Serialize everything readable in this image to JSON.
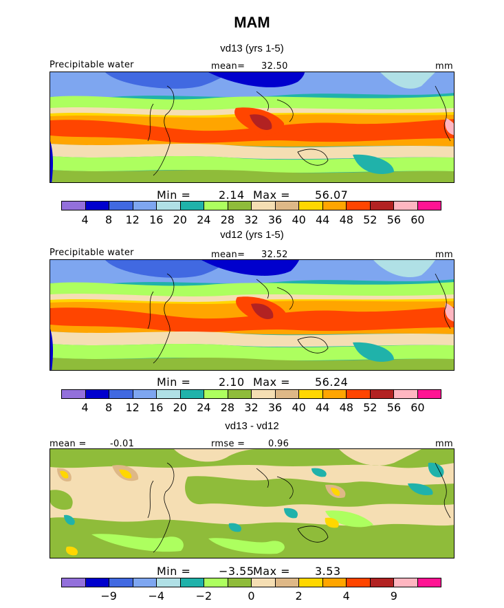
{
  "figure": {
    "title": "MAM"
  },
  "panels": [
    {
      "subtitle": "vd13 (yrs 1-5)",
      "left_label": "Precipitable water",
      "mean_label": "mean=",
      "mean_value": "32.50",
      "unit": "mm",
      "min_label": "Min =",
      "min_value": "2.14",
      "max_label": "Max =",
      "max_value": "56.07",
      "ticks": [
        "4",
        "8",
        "12",
        "16",
        "20",
        "24",
        "28",
        "32",
        "36",
        "40",
        "44",
        "48",
        "52",
        "56",
        "60"
      ]
    },
    {
      "subtitle": "vd12 (yrs 1-5)",
      "left_label": "Precipitable water",
      "mean_label": "mean=",
      "mean_value": "32.52",
      "unit": "mm",
      "min_label": "Min =",
      "min_value": "2.10",
      "max_label": "Max =",
      "max_value": "56.24",
      "ticks": [
        "4",
        "8",
        "12",
        "16",
        "20",
        "24",
        "28",
        "32",
        "36",
        "40",
        "44",
        "48",
        "52",
        "56",
        "60"
      ]
    },
    {
      "subtitle": "vd13 - vd12",
      "left_label": "mean =",
      "left_value": "-0.01",
      "rmse_label": "rmse =",
      "rmse_value": "0.96",
      "unit": "mm",
      "min_label": "Min =",
      "min_value": "−3.55",
      "max_label": "Max =",
      "max_value": "3.53",
      "ticks": [
        "−9",
        "−4",
        "−2",
        "0",
        "2",
        "4",
        "9"
      ]
    }
  ],
  "palette": [
    "#9370db",
    "#0000cd",
    "#4169e1",
    "#7ea6f0",
    "#b0e0e6",
    "#20b2aa",
    "#adff5f",
    "#8fbc3a",
    "#f5deb3",
    "#deb887",
    "#ffd700",
    "#ffa500",
    "#ff4500",
    "#b22222",
    "#ffb6c1",
    "#ff1493"
  ]
}
